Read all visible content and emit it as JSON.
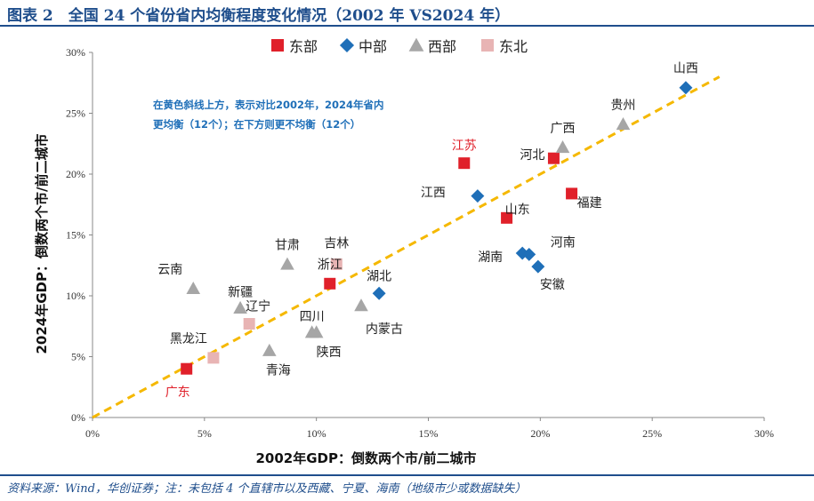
{
  "title": "图表 2　全国 24 个省份省内均衡程度变化情况（2002 年 VS2024 年）",
  "source": "资料来源：Wind，华创证券；注：未包括 4 个直辖市以及西藏、宁夏、海南（地级市少或数据缺失）",
  "colors": {
    "east": "#e0202a",
    "central": "#1f6fb8",
    "west": "#a6a6a6",
    "northeast": "#e8b4b4",
    "trend": "#f5b800",
    "header": "#1f4e8c"
  },
  "chart_data": {
    "type": "scatter",
    "xlabel": "2002年GDP：倒数两个市/前二城市",
    "ylabel": "2024年GDP：倒数两个市/前二城市",
    "xlim": [
      0,
      0.3
    ],
    "ylim": [
      0,
      0.3
    ],
    "x_ticks": [
      "0%",
      "5%",
      "10%",
      "15%",
      "20%",
      "25%",
      "30%"
    ],
    "y_ticks": [
      "0%",
      "5%",
      "10%",
      "15%",
      "20%",
      "25%",
      "30%"
    ],
    "legend": [
      {
        "key": "east",
        "label": "东部",
        "marker": "square"
      },
      {
        "key": "central",
        "label": "中部",
        "marker": "diamond"
      },
      {
        "key": "west",
        "label": "西部",
        "marker": "triangle"
      },
      {
        "key": "northeast",
        "label": "东北",
        "marker": "square"
      }
    ],
    "legend_position": "top",
    "annotation": [
      "在黄色斜线上方，表示对比2002年，2024年省内",
      "更均衡（12个）；在下方则更不均衡（12个）"
    ],
    "trend_line": {
      "style": "dashed",
      "from": [
        0,
        0
      ],
      "to": [
        0.28,
        0.28
      ]
    },
    "points": [
      {
        "name": "广东",
        "group": "east",
        "x": 0.042,
        "y": 0.04
      },
      {
        "name": "浙江",
        "group": "east",
        "x": 0.106,
        "y": 0.11
      },
      {
        "name": "江苏",
        "group": "east",
        "x": 0.166,
        "y": 0.209
      },
      {
        "name": "山东",
        "group": "east",
        "x": 0.185,
        "y": 0.164
      },
      {
        "name": "河北",
        "group": "east",
        "x": 0.206,
        "y": 0.213
      },
      {
        "name": "福建",
        "group": "east",
        "x": 0.214,
        "y": 0.184
      },
      {
        "name": "湖北",
        "group": "central",
        "x": 0.128,
        "y": 0.102
      },
      {
        "name": "江西",
        "group": "central",
        "x": 0.172,
        "y": 0.182
      },
      {
        "name": "湖南",
        "group": "central",
        "x": 0.192,
        "y": 0.135
      },
      {
        "name": "河南",
        "group": "central",
        "x": 0.195,
        "y": 0.134
      },
      {
        "name": "安徽",
        "group": "central",
        "x": 0.199,
        "y": 0.124
      },
      {
        "name": "山西",
        "group": "central",
        "x": 0.265,
        "y": 0.271
      },
      {
        "name": "云南",
        "group": "west",
        "x": 0.045,
        "y": 0.106
      },
      {
        "name": "新疆",
        "group": "west",
        "x": 0.066,
        "y": 0.09
      },
      {
        "name": "青海",
        "group": "west",
        "x": 0.079,
        "y": 0.055
      },
      {
        "name": "甘肃",
        "group": "west",
        "x": 0.087,
        "y": 0.126
      },
      {
        "name": "四川",
        "group": "west",
        "x": 0.098,
        "y": 0.07
      },
      {
        "name": "陕西",
        "group": "west",
        "x": 0.1,
        "y": 0.07
      },
      {
        "name": "内蒙古",
        "group": "west",
        "x": 0.12,
        "y": 0.092
      },
      {
        "name": "广西",
        "group": "west",
        "x": 0.21,
        "y": 0.222
      },
      {
        "name": "贵州",
        "group": "west",
        "x": 0.237,
        "y": 0.241
      },
      {
        "name": "黑龙江",
        "group": "northeast",
        "x": 0.054,
        "y": 0.049
      },
      {
        "name": "辽宁",
        "group": "northeast",
        "x": 0.07,
        "y": 0.077
      },
      {
        "name": "吉林",
        "group": "northeast",
        "x": 0.109,
        "y": 0.126
      }
    ]
  }
}
